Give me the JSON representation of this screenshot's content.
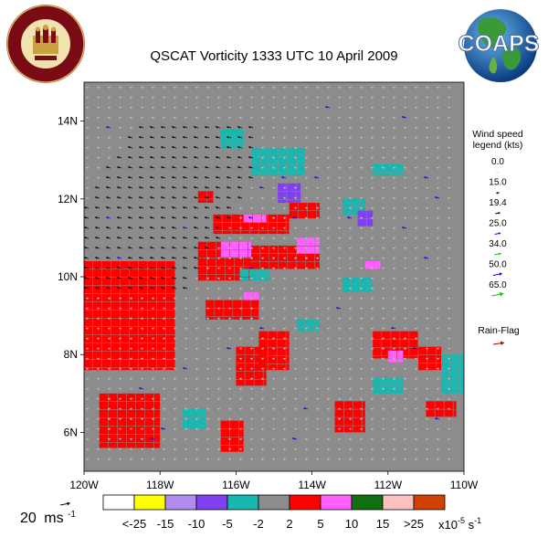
{
  "chart_data": {
    "type": "heatmap",
    "title": "QSCAT Vorticity 1333 UTC 10 April 2009",
    "x_ticks": [
      "120W",
      "118W",
      "116W",
      "114W",
      "112W",
      "110W"
    ],
    "x_tick_values": [
      -120,
      -118,
      -116,
      -114,
      -112,
      -110
    ],
    "y_ticks": [
      "14N",
      "12N",
      "10N",
      "8N",
      "6N"
    ],
    "y_tick_values": [
      14,
      12,
      10,
      8,
      6
    ],
    "xlim": [
      -120,
      -110
    ],
    "ylim": [
      5.0,
      15.0
    ],
    "vorticity_scale": {
      "labels": [
        "<-25",
        "-15",
        "-10",
        "-5",
        "-2",
        "2",
        "5",
        "10",
        "15",
        ">25"
      ],
      "unit": "x10-5 s-1",
      "colors": [
        "#ffffff",
        "#ffff00",
        "#b08cf0",
        "#8040f0",
        "#18b8b0",
        "#8c8c8c",
        "#ff0000",
        "#ff60ff",
        "#107010",
        "#ffc0c0",
        "#d04000"
      ]
    },
    "wind_speed_legend": {
      "title_line1": "Wind speed",
      "title_line2": "legend (kts)",
      "values": [
        "0.0",
        "15.0",
        "19.4",
        "25.0",
        "34.0",
        "50.0",
        "65.0"
      ],
      "colors": [
        "#ffffff",
        "#000000",
        "#000000",
        "#0000ff",
        "#00cc00",
        "#0000ff",
        "#00cc00"
      ]
    },
    "rain_flag_label": "Rain-Flag",
    "rain_flag_color": "#a00000",
    "reference_vector": {
      "value": "20",
      "unit": "ms",
      "unit_exp": "-1"
    },
    "positive_regions": [
      {
        "lon": [
          -120,
          -117.6
        ],
        "lat": [
          7.6,
          10.4
        ]
      },
      {
        "lon": [
          -117,
          -115.6
        ],
        "lat": [
          9.9,
          10.9
        ]
      },
      {
        "lon": [
          -115.6,
          -113.8
        ],
        "lat": [
          10.2,
          10.8
        ]
      },
      {
        "lon": [
          -116.6,
          -114.6
        ],
        "lat": [
          11.1,
          11.6
        ]
      },
      {
        "lon": [
          -114.6,
          -113.8
        ],
        "lat": [
          11.5,
          11.9
        ]
      },
      {
        "lon": [
          -117,
          -116.6
        ],
        "lat": [
          11.9,
          12.2
        ]
      },
      {
        "lon": [
          -119.6,
          -118
        ],
        "lat": [
          5.6,
          7.0
        ]
      },
      {
        "lon": [
          -116,
          -115.2
        ],
        "lat": [
          7.2,
          8.2
        ]
      },
      {
        "lon": [
          -116.8,
          -115.4
        ],
        "lat": [
          8.9,
          9.4
        ]
      },
      {
        "lon": [
          -115.4,
          -114.6
        ],
        "lat": [
          7.6,
          8.6
        ]
      },
      {
        "lon": [
          -112.4,
          -111.2
        ],
        "lat": [
          7.9,
          8.6
        ]
      },
      {
        "lon": [
          -113.4,
          -112.6
        ],
        "lat": [
          6.0,
          6.8
        ]
      },
      {
        "lon": [
          -111.2,
          -110.6
        ],
        "lat": [
          7.6,
          8.2
        ]
      },
      {
        "lon": [
          -111,
          -110.2
        ],
        "lat": [
          6.4,
          6.8
        ]
      },
      {
        "lon": [
          -116.4,
          -115.8
        ],
        "lat": [
          5.5,
          6.3
        ]
      }
    ],
    "pink_regions": [
      {
        "lon": [
          -116.4,
          -115.6
        ],
        "lat": [
          10.5,
          10.9
        ]
      },
      {
        "lon": [
          -114.4,
          -113.8
        ],
        "lat": [
          10.6,
          11.0
        ]
      },
      {
        "lon": [
          -115.8,
          -115.2
        ],
        "lat": [
          11.4,
          11.6
        ]
      },
      {
        "lon": [
          -112.6,
          -112.2
        ],
        "lat": [
          10.2,
          10.4
        ]
      },
      {
        "lon": [
          -115.8,
          -115.4
        ],
        "lat": [
          9.4,
          9.6
        ]
      },
      {
        "lon": [
          -112,
          -111.6
        ],
        "lat": [
          7.8,
          8.1
        ]
      }
    ],
    "purple_regions": [
      {
        "lon": [
          -114.9,
          -114.3
        ],
        "lat": [
          11.9,
          12.4
        ]
      },
      {
        "lon": [
          -112.8,
          -112.4
        ],
        "lat": [
          11.3,
          11.7
        ]
      }
    ],
    "teal_regions": [
      {
        "lon": [
          -115.6,
          -114.2
        ],
        "lat": [
          12.6,
          13.3
        ]
      },
      {
        "lon": [
          -112.4,
          -111.6
        ],
        "lat": [
          12.6,
          12.9
        ]
      },
      {
        "lon": [
          -113.2,
          -112.4
        ],
        "lat": [
          9.6,
          10.0
        ]
      },
      {
        "lon": [
          -115.9,
          -115.1
        ],
        "lat": [
          9.9,
          10.2
        ]
      },
      {
        "lon": [
          -116.4,
          -115.8
        ],
        "lat": [
          13.3,
          13.8
        ]
      },
      {
        "lon": [
          -117.4,
          -116.8
        ],
        "lat": [
          6.1,
          6.6
        ]
      },
      {
        "lon": [
          -110.6,
          -110.0
        ],
        "lat": [
          7.0,
          8.0
        ]
      },
      {
        "lon": [
          -114.4,
          -113.8
        ],
        "lat": [
          8.6,
          8.9
        ]
      },
      {
        "lon": [
          -112.4,
          -111.6
        ],
        "lat": [
          7.0,
          7.4
        ]
      },
      {
        "lon": [
          -113.2,
          -112.6
        ],
        "lat": [
          11.6,
          12.0
        ]
      }
    ]
  }
}
